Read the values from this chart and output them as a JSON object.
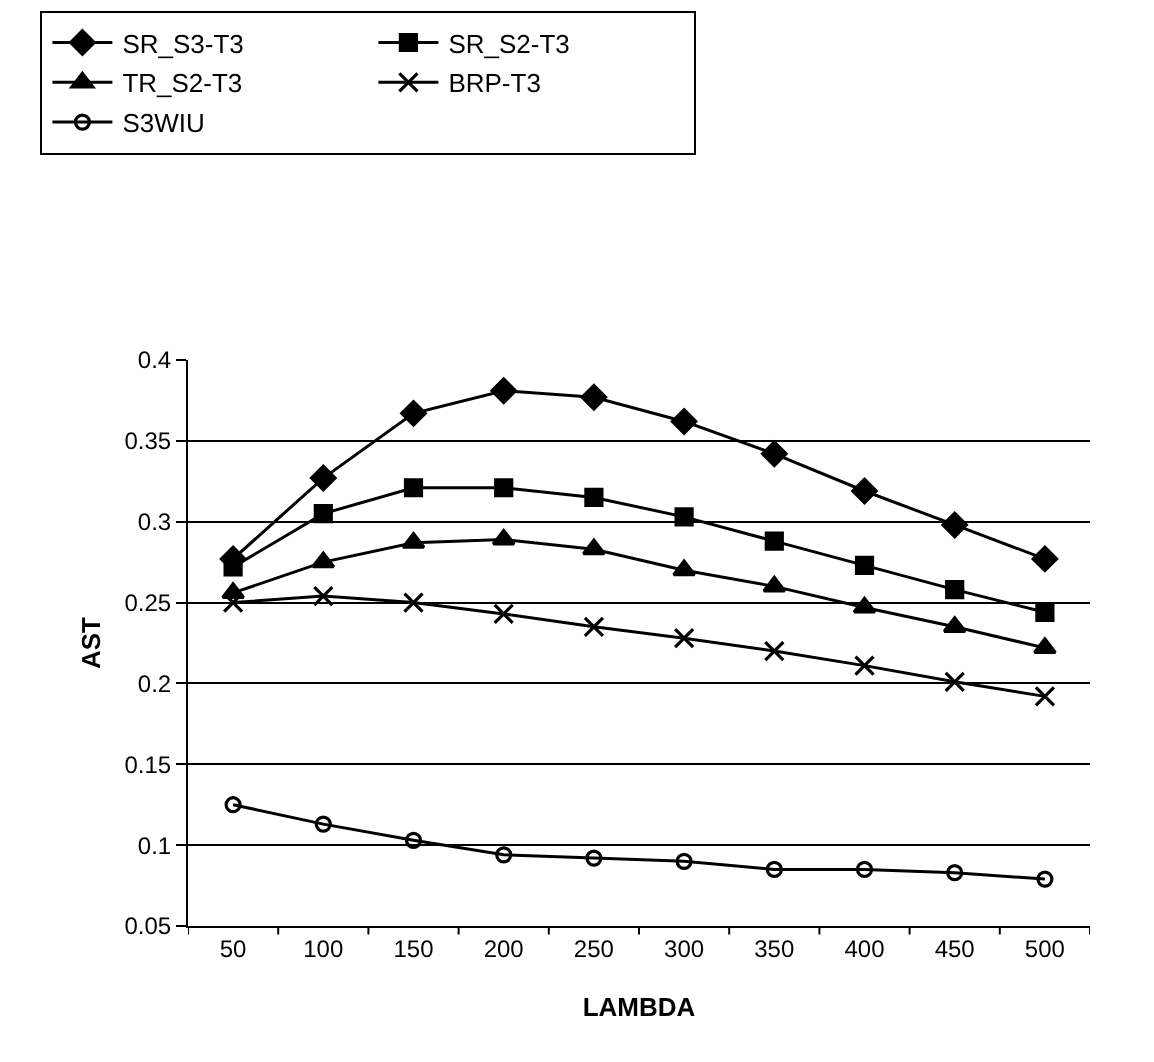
{
  "chart_data": {
    "type": "line",
    "xlabel": "LAMBDA",
    "ylabel": "AST",
    "categories": [
      "50",
      "100",
      "150",
      "200",
      "250",
      "300",
      "350",
      "400",
      "450",
      "500"
    ],
    "series": [
      {
        "name": "SR_S3-T3",
        "color": "#000000",
        "marker": "diamond",
        "values": [
          0.277,
          0.327,
          0.367,
          0.381,
          0.377,
          0.362,
          0.342,
          0.319,
          0.298,
          0.277
        ]
      },
      {
        "name": "SR_S2-T3",
        "color": "#000000",
        "marker": "square",
        "values": [
          0.272,
          0.305,
          0.321,
          0.321,
          0.315,
          0.303,
          0.288,
          0.273,
          0.258,
          0.244
        ]
      },
      {
        "name": "TR_S2-T3",
        "color": "#000000",
        "marker": "triangle",
        "values": [
          0.256,
          0.275,
          0.287,
          0.289,
          0.283,
          0.27,
          0.26,
          0.247,
          0.235,
          0.222
        ]
      },
      {
        "name": "BRP-T3",
        "color": "#000000",
        "marker": "cross",
        "values": [
          0.25,
          0.254,
          0.25,
          0.243,
          0.235,
          0.228,
          0.22,
          0.211,
          0.201,
          0.192
        ]
      },
      {
        "name": "S3WIU",
        "color": "#000000",
        "marker": "circle",
        "values": [
          0.125,
          0.113,
          0.103,
          0.094,
          0.092,
          0.09,
          0.085,
          0.085,
          0.083,
          0.079
        ]
      }
    ],
    "ylim": [
      0.05,
      0.4
    ],
    "yticks": [
      0.05,
      0.1,
      0.15,
      0.2,
      0.25,
      0.3,
      0.35,
      0.4
    ],
    "grid": "y",
    "legend": "top",
    "line_style": "solid"
  }
}
